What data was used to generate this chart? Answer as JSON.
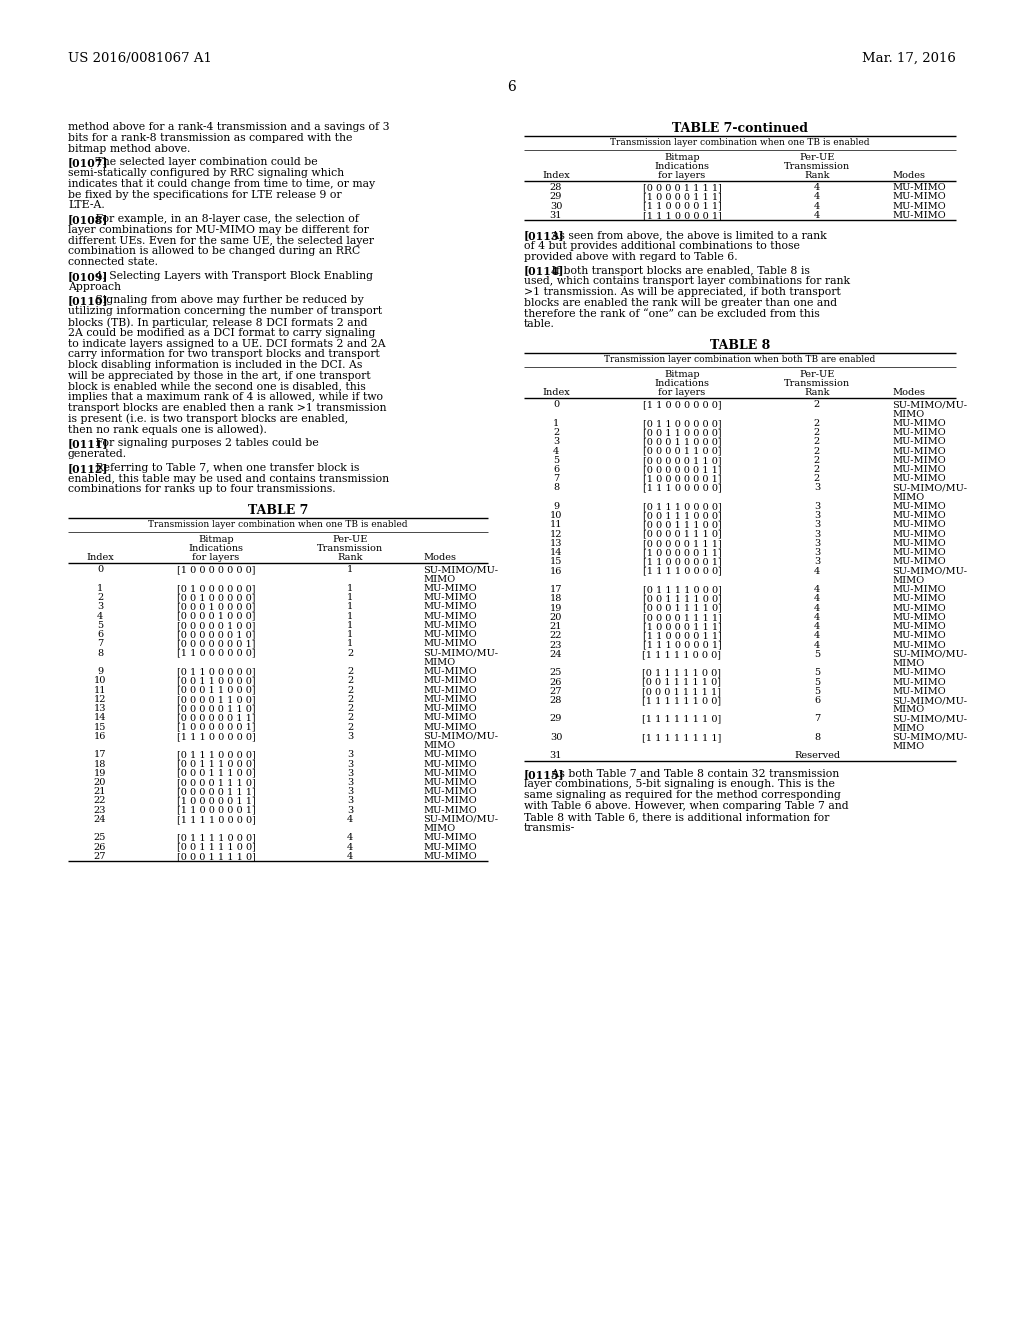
{
  "page_header_left": "US 2016/0081067 A1",
  "page_header_right": "Mar. 17, 2016",
  "page_number": "6",
  "background_color": "#ffffff",
  "left_paragraphs": [
    {
      "tag": "",
      "bold": false,
      "text": "method above for a rank-4 transmission and a savings of 3 bits for a rank-8 transmission as compared with the bitmap method above."
    },
    {
      "tag": "[0107]",
      "bold": true,
      "text": "   The selected layer combination could be semi-statically configured by RRC signaling which indicates that it could change from time to time, or may be fixed by the specifications for LTE release 9 or LTE-A."
    },
    {
      "tag": "[0108]",
      "bold": true,
      "text": "   For example, in an 8-layer case, the selection of layer combinations for MU-MIMO may be different for different UEs. Even for the same UE, the selected layer combination is allowed to be changed during an RRC connected state."
    },
    {
      "tag": "[0109]",
      "bold": true,
      "text": "   4. Selecting Layers with Transport Block Enabling Approach"
    },
    {
      "tag": "[0110]",
      "bold": true,
      "text": "   Signaling from above may further be reduced by utilizing information concerning the number of transport blocks (TB). In particular, release 8 DCI formats 2 and 2A could be modified as a DCI format to carry signaling to indicate layers assigned to a UE. DCI formats 2 and 2A carry information for two transport blocks and transport block disabling information is included in the DCI. As will be appreciated by those in the art, if one transport block is enabled while the second one is disabled, this implies that a maximum rank of 4 is allowed, while if two transport blocks are enabled then a rank >1 transmission is present (i.e. is two transport blocks are enabled, then no rank equals one is allowed)."
    },
    {
      "tag": "[0111]",
      "bold": true,
      "text": "   For signaling purposes 2 tables could be generated."
    },
    {
      "tag": "[0112]",
      "bold": true,
      "text": "   Referring to Table 7, when one transfer block is enabled, this table may be used and contains transmission combinations for ranks up to four transmissions."
    }
  ],
  "table7_title": "TABLE 7",
  "table7_subtitle": "Transmission layer combination when one TB is enabled",
  "table7_rows": [
    [
      "0",
      "[1 0 0 0 0 0 0 0]",
      "1",
      "SU-MIMO/MU-MIMO"
    ],
    [
      "1",
      "[0 1 0 0 0 0 0 0]",
      "1",
      "MU-MIMO"
    ],
    [
      "2",
      "[0 0 1 0 0 0 0 0]",
      "1",
      "MU-MIMO"
    ],
    [
      "3",
      "[0 0 0 1 0 0 0 0]",
      "1",
      "MU-MIMO"
    ],
    [
      "4",
      "[0 0 0 0 1 0 0 0]",
      "1",
      "MU-MIMO"
    ],
    [
      "5",
      "[0 0 0 0 0 1 0 0]",
      "1",
      "MU-MIMO"
    ],
    [
      "6",
      "[0 0 0 0 0 0 1 0]",
      "1",
      "MU-MIMO"
    ],
    [
      "7",
      "[0 0 0 0 0 0 0 1]",
      "1",
      "MU-MIMO"
    ],
    [
      "8",
      "[1 1 0 0 0 0 0 0]",
      "2",
      "SU-MIMO/MU-MIMO"
    ],
    [
      "9",
      "[0 1 1 0 0 0 0 0]",
      "2",
      "MU-MIMO"
    ],
    [
      "10",
      "[0 0 1 1 0 0 0 0]",
      "2",
      "MU-MIMO"
    ],
    [
      "11",
      "[0 0 0 1 1 0 0 0]",
      "2",
      "MU-MIMO"
    ],
    [
      "12",
      "[0 0 0 0 1 1 0 0]",
      "2",
      "MU-MIMO"
    ],
    [
      "13",
      "[0 0 0 0 0 1 1 0]",
      "2",
      "MU-MIMO"
    ],
    [
      "14",
      "[0 0 0 0 0 0 1 1]",
      "2",
      "MU-MIMO"
    ],
    [
      "15",
      "[1 0 0 0 0 0 0 1]",
      "2",
      "MU-MIMO"
    ],
    [
      "16",
      "[1 1 1 0 0 0 0 0]",
      "3",
      "SU-MIMO/MU-MIMO"
    ],
    [
      "17",
      "[0 1 1 1 0 0 0 0]",
      "3",
      "MU-MIMO"
    ],
    [
      "18",
      "[0 0 1 1 1 0 0 0]",
      "3",
      "MU-MIMO"
    ],
    [
      "19",
      "[0 0 0 1 1 1 0 0]",
      "3",
      "MU-MIMO"
    ],
    [
      "20",
      "[0 0 0 0 1 1 1 0]",
      "3",
      "MU-MIMO"
    ],
    [
      "21",
      "[0 0 0 0 0 1 1 1]",
      "3",
      "MU-MIMO"
    ],
    [
      "22",
      "[1 0 0 0 0 0 1 1]",
      "3",
      "MU-MIMO"
    ],
    [
      "23",
      "[1 1 0 0 0 0 0 1]",
      "3",
      "MU-MIMO"
    ],
    [
      "24",
      "[1 1 1 1 0 0 0 0]",
      "4",
      "SU-MIMO/MU-MIMO"
    ],
    [
      "25",
      "[0 1 1 1 1 0 0 0]",
      "4",
      "MU-MIMO"
    ],
    [
      "26",
      "[0 0 1 1 1 1 0 0]",
      "4",
      "MU-MIMO"
    ],
    [
      "27",
      "[0 0 0 1 1 1 1 0]",
      "4",
      "MU-MIMO"
    ]
  ],
  "table7cont_rows": [
    [
      "28",
      "[0 0 0 0 1 1 1 1]",
      "4",
      "MU-MIMO"
    ],
    [
      "29",
      "[1 0 0 0 0 1 1 1]",
      "4",
      "MU-MIMO"
    ],
    [
      "30",
      "[1 1 0 0 0 0 1 1]",
      "4",
      "MU-MIMO"
    ],
    [
      "31",
      "[1 1 1 0 0 0 0 1]",
      "4",
      "MU-MIMO"
    ]
  ],
  "right_paragraphs_top": [
    {
      "tag": "[0113]",
      "bold": true,
      "text": "   As seen from above, the above is limited to a rank of 4 but provides additional combinations to those provided above with regard to Table 6."
    },
    {
      "tag": "[0114]",
      "bold": true,
      "text": "   If both transport blocks are enabled, Table 8 is used, which contains transport layer combinations for rank >1 transmission. As will be appreciated, if both transport blocks are enabled the rank will be greater than one and therefore the rank of “one” can be excluded from this table."
    }
  ],
  "table8_title": "TABLE 8",
  "table8_subtitle": "Transmission layer combination when both TB are enabled",
  "table8_rows": [
    [
      "0",
      "[1 1 0 0 0 0 0 0]",
      "2",
      "SU-MIMO/MU-MIMO"
    ],
    [
      "1",
      "[0 1 1 0 0 0 0 0]",
      "2",
      "MU-MIMO"
    ],
    [
      "2",
      "[0 0 1 1 0 0 0 0]",
      "2",
      "MU-MIMO"
    ],
    [
      "3",
      "[0 0 0 1 1 0 0 0]",
      "2",
      "MU-MIMO"
    ],
    [
      "4",
      "[0 0 0 0 1 1 0 0]",
      "2",
      "MU-MIMO"
    ],
    [
      "5",
      "[0 0 0 0 0 1 1 0]",
      "2",
      "MU-MIMO"
    ],
    [
      "6",
      "[0 0 0 0 0 0 1 1]",
      "2",
      "MU-MIMO"
    ],
    [
      "7",
      "[1 0 0 0 0 0 0 1]",
      "2",
      "MU-MIMO"
    ],
    [
      "8",
      "[1 1 1 0 0 0 0 0]",
      "3",
      "SU-MIMO/MU-MIMO"
    ],
    [
      "9",
      "[0 1 1 1 0 0 0 0]",
      "3",
      "MU-MIMO"
    ],
    [
      "10",
      "[0 0 1 1 1 0 0 0]",
      "3",
      "MU-MIMO"
    ],
    [
      "11",
      "[0 0 0 1 1 1 0 0]",
      "3",
      "MU-MIMO"
    ],
    [
      "12",
      "[0 0 0 0 1 1 1 0]",
      "3",
      "MU-MIMO"
    ],
    [
      "13",
      "[0 0 0 0 0 1 1 1]",
      "3",
      "MU-MIMO"
    ],
    [
      "14",
      "[1 0 0 0 0 0 1 1]",
      "3",
      "MU-MIMO"
    ],
    [
      "15",
      "[1 1 0 0 0 0 0 1]",
      "3",
      "MU-MIMO"
    ],
    [
      "16",
      "[1 1 1 1 0 0 0 0]",
      "4",
      "SU-MIMO/MU-MIMO"
    ],
    [
      "17",
      "[0 1 1 1 1 0 0 0]",
      "4",
      "MU-MIMO"
    ],
    [
      "18",
      "[0 0 1 1 1 1 0 0]",
      "4",
      "MU-MIMO"
    ],
    [
      "19",
      "[0 0 0 1 1 1 1 0]",
      "4",
      "MU-MIMO"
    ],
    [
      "20",
      "[0 0 0 0 1 1 1 1]",
      "4",
      "MU-MIMO"
    ],
    [
      "21",
      "[1 0 0 0 0 1 1 1]",
      "4",
      "MU-MIMO"
    ],
    [
      "22",
      "[1 1 0 0 0 0 1 1]",
      "4",
      "MU-MIMO"
    ],
    [
      "23",
      "[1 1 1 0 0 0 0 1]",
      "4",
      "MU-MIMO"
    ],
    [
      "24",
      "[1 1 1 1 1 0 0 0]",
      "5",
      "SU-MIMO/MU-MIMO"
    ],
    [
      "25",
      "[0 1 1 1 1 1 0 0]",
      "5",
      "MU-MIMO"
    ],
    [
      "26",
      "[0 0 1 1 1 1 1 0]",
      "5",
      "MU-MIMO"
    ],
    [
      "27",
      "[0 0 0 1 1 1 1 1]",
      "5",
      "MU-MIMO"
    ],
    [
      "28",
      "[1 1 1 1 1 1 0 0]",
      "6",
      "SU-MIMO/MU-MIMO"
    ],
    [
      "29",
      "[1 1 1 1 1 1 1 0]",
      "7",
      "SU-MIMO/MU-MIMO"
    ],
    [
      "30",
      "[1 1 1 1 1 1 1 1]",
      "8",
      "SU-MIMO/MU-MIMO"
    ],
    [
      "31",
      "",
      "Reserved",
      ""
    ]
  ],
  "right_paragraphs_bottom": [
    {
      "tag": "[0115]",
      "bold": true,
      "text": "   As both Table 7 and Table 8 contain 32 transmission layer combinations, 5-bit signaling is enough. This is the same signaling as required for the method corresponding with Table 6 above. However, when comparing Table 7 and Table 8 with Table 6, there is additional information for transmis-"
    }
  ]
}
